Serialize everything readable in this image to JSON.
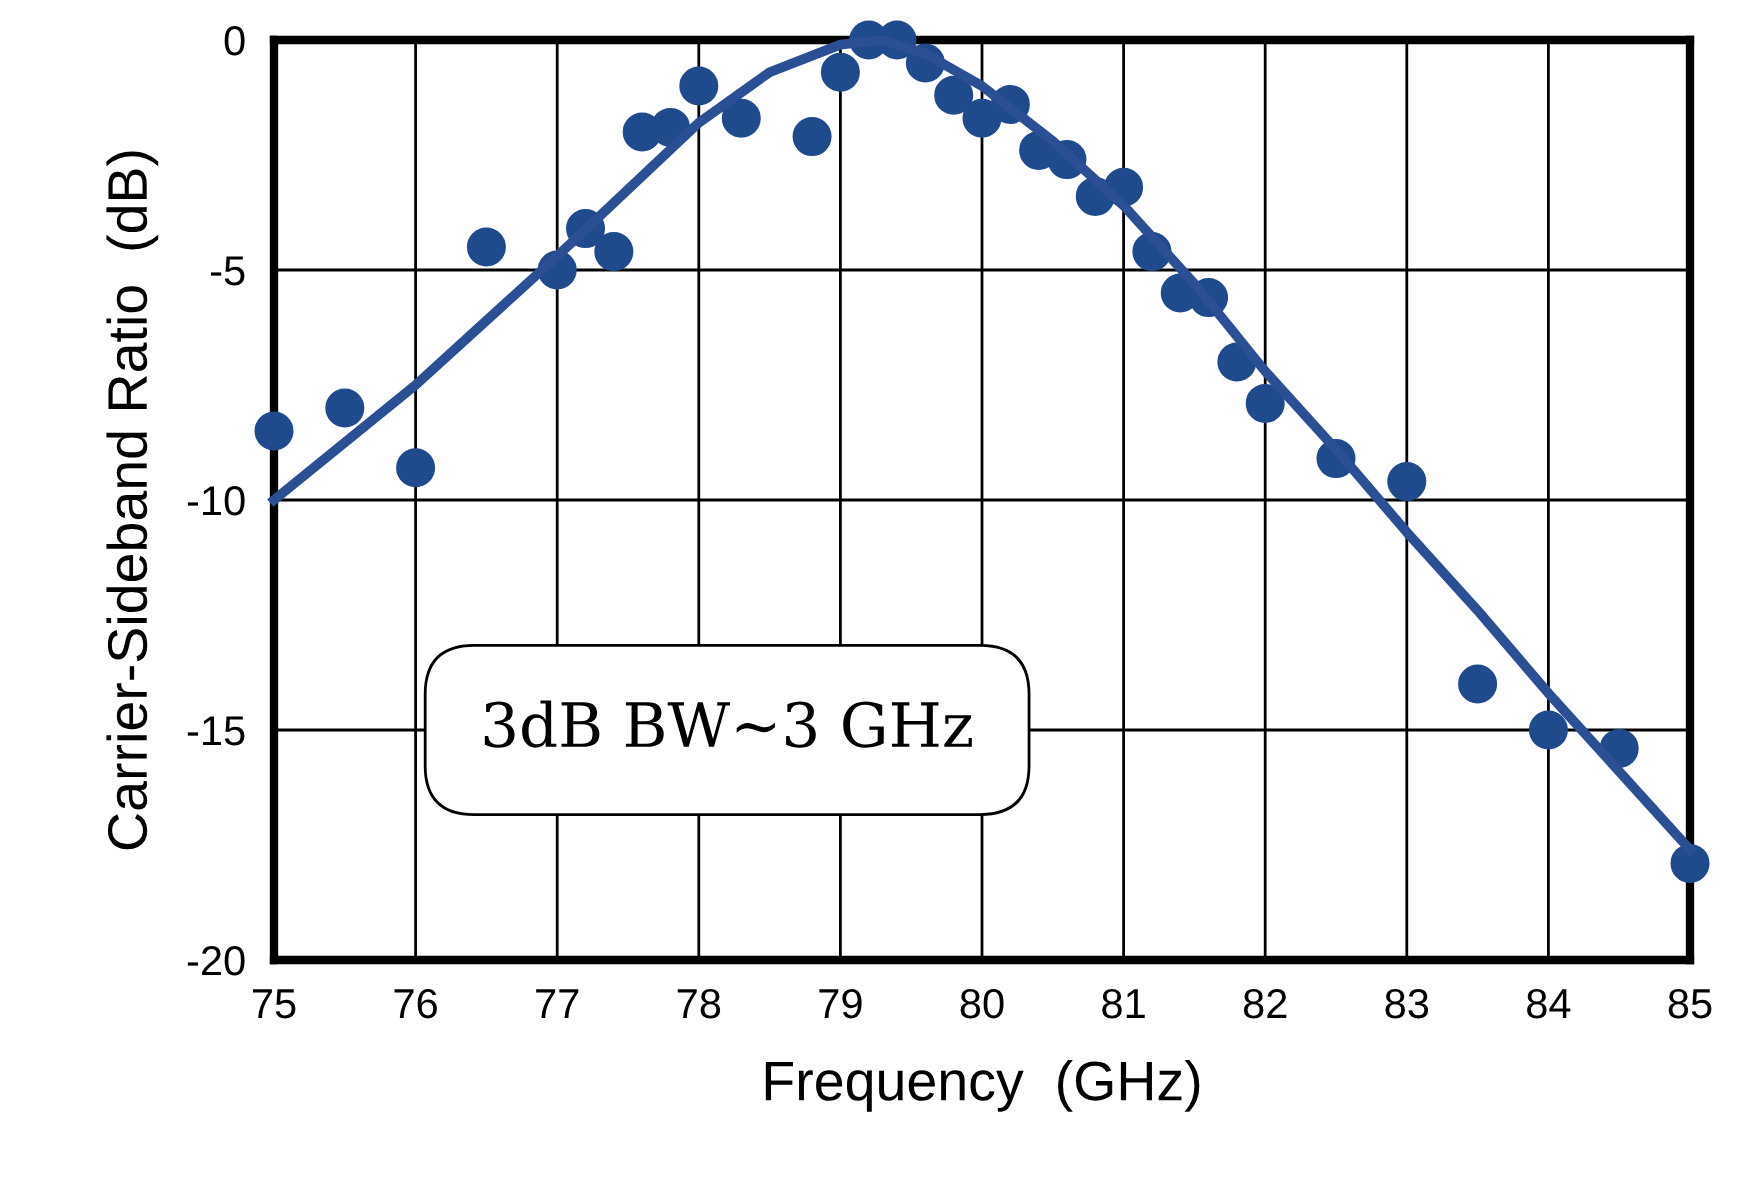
{
  "chart_data": {
    "type": "scatter",
    "xlabel": "Frequency  (GHz)",
    "ylabel": "Carrier-Sideband Ratio  (dB)",
    "xlim": [
      75,
      85
    ],
    "ylim": [
      -20,
      0
    ],
    "xticks": [
      75,
      76,
      77,
      78,
      79,
      80,
      81,
      82,
      83,
      84,
      85
    ],
    "yticks": [
      -20,
      -15,
      -10,
      -5,
      0
    ],
    "grid": true,
    "annotations": [
      "3dB BW~3 GHz"
    ],
    "series": [
      {
        "marker": "circle",
        "color": "#1f4a8c",
        "x": [
          75,
          75.5,
          76,
          76.5,
          77,
          77.2,
          77.4,
          77.6,
          77.8,
          78,
          78.3,
          78.8,
          79,
          79.2,
          79.4,
          79.6,
          79.8,
          80,
          80.2,
          80.4,
          80.6,
          80.8,
          81,
          81.2,
          81.4,
          81.6,
          81.8,
          82,
          82.5,
          83,
          83.5,
          84,
          84.5,
          85
        ],
        "values": [
          -8.5,
          -8,
          -9.3,
          -4.5,
          -5,
          -4.1,
          -4.6,
          -2,
          -1.9,
          -1,
          -1.7,
          -2.1,
          -0.7,
          0,
          0,
          -0.5,
          -1.2,
          -1.7,
          -1.4,
          -2.4,
          -2.6,
          -3.4,
          -3.2,
          -4.6,
          -5.5,
          -5.6,
          -7,
          -7.9,
          -9.1,
          -9.6,
          -14,
          -15,
          -15.4,
          -17.9
        ]
      },
      {
        "type": "line",
        "marker": "none",
        "line_style": "solid",
        "color": "#2b4f94",
        "x": [
          75,
          76,
          77,
          78,
          78.5,
          79,
          79.3,
          79.6,
          80,
          80.5,
          81,
          81.5,
          82,
          82.5,
          83,
          83.5,
          84,
          84.5,
          85
        ],
        "values": [
          -10,
          -7.5,
          -4.7,
          -1.8,
          -0.7,
          -0.1,
          0,
          -0.3,
          -1,
          -2.2,
          -3.6,
          -5.3,
          -7.2,
          -8.9,
          -10.7,
          -12.4,
          -14.2,
          -15.9,
          -17.6
        ]
      }
    ]
  }
}
